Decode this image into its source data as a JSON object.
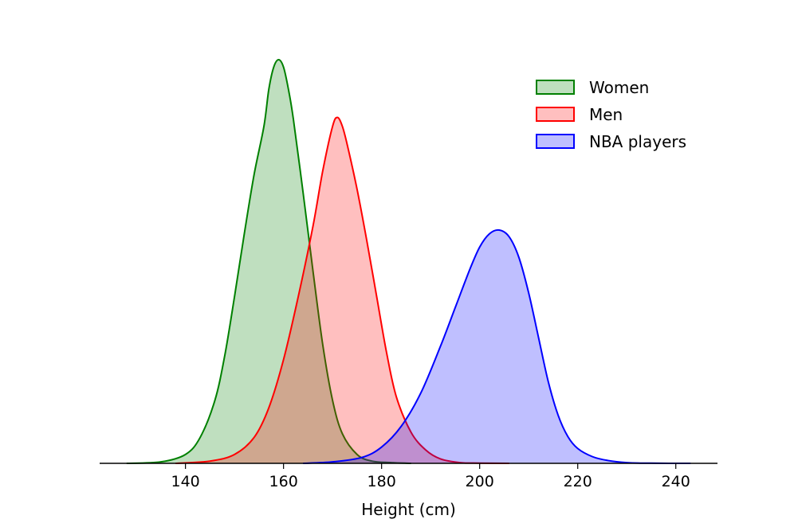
{
  "chart_data": {
    "type": "area",
    "title": "",
    "xlabel": "Height (cm)",
    "ylabel": "",
    "xlim": [
      122.5,
      248.5
    ],
    "ylim": [
      0,
      0.0545
    ],
    "x_ticks": [
      140,
      160,
      180,
      200,
      220,
      240
    ],
    "y_axis_visible": false,
    "grid": false,
    "legend_position": "top-right",
    "series": [
      {
        "name": "Women",
        "color": "#008000",
        "fill": "#008000",
        "fill_opacity": 0.25,
        "x": [
          128,
          135,
          140,
          143,
          146,
          148,
          150,
          152,
          154,
          156,
          157,
          158,
          159,
          160,
          161,
          162,
          164,
          166,
          168,
          170,
          172,
          175,
          178,
          182,
          186
        ],
        "y": [
          0.0,
          0.0002,
          0.0012,
          0.0035,
          0.0085,
          0.0145,
          0.0225,
          0.031,
          0.039,
          0.0455,
          0.0505,
          0.0535,
          0.0545,
          0.0535,
          0.0505,
          0.0465,
          0.0365,
          0.026,
          0.016,
          0.0085,
          0.004,
          0.0012,
          0.0003,
          0.0001,
          0.0
        ]
      },
      {
        "name": "Men",
        "color": "#ff0000",
        "fill": "#ff0000",
        "fill_opacity": 0.25,
        "x": [
          138,
          145,
          150,
          154,
          157,
          160,
          163,
          166,
          168,
          170,
          171,
          172,
          173,
          175,
          177,
          179,
          181,
          183,
          186,
          189,
          192,
          196,
          200,
          206
        ],
        "y": [
          0.0,
          0.0003,
          0.0012,
          0.0035,
          0.0075,
          0.014,
          0.0225,
          0.032,
          0.0395,
          0.0455,
          0.0467,
          0.0455,
          0.043,
          0.037,
          0.03,
          0.0225,
          0.015,
          0.009,
          0.0042,
          0.0018,
          0.0006,
          0.0001,
          3e-05,
          0.0
        ]
      },
      {
        "name": "NBA players",
        "color": "#0000ff",
        "fill": "#0000ff",
        "fill_opacity": 0.25,
        "x": [
          164,
          170,
          176,
          180,
          184,
          188,
          192,
          195,
          198,
          200,
          202,
          204,
          206,
          208,
          210,
          212,
          214,
          216,
          218,
          220,
          223,
          226,
          230,
          235,
          243
        ],
        "y": [
          0.0,
          0.0002,
          0.0008,
          0.0022,
          0.005,
          0.0095,
          0.0158,
          0.021,
          0.0262,
          0.0292,
          0.031,
          0.0315,
          0.0306,
          0.0278,
          0.023,
          0.017,
          0.011,
          0.0065,
          0.0036,
          0.002,
          0.0009,
          0.0004,
          0.0001,
          2e-05,
          0.0
        ]
      }
    ]
  }
}
